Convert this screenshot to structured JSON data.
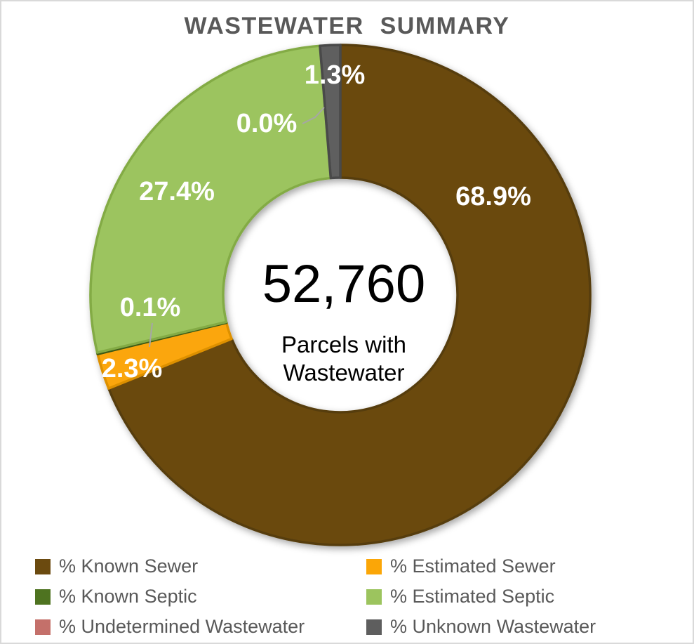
{
  "chart_data": {
    "type": "pie",
    "subtype": "donut",
    "title": "WASTEWATER SUMMARY",
    "start_angle_deg": 0,
    "direction": "clockwise",
    "hole_ratio": 0.47,
    "grid": false,
    "legend_position": "bottom-two-columns",
    "center_text": {
      "value": "52,760",
      "caption_lines": [
        "Parcels with",
        "Wastewater"
      ]
    },
    "series": [
      {
        "key": "known-sewer",
        "name": "% Known Sewer",
        "value": 68.9,
        "label": "68.9%",
        "color": "#6B4A0F",
        "edge": "#563C0B"
      },
      {
        "key": "estimated-sewer",
        "name": "% Estimated Sewer",
        "value": 2.3,
        "label": "2.3%",
        "color": "#FBA607",
        "edge": "#DD9003"
      },
      {
        "key": "known-septic",
        "name": "% Known Septic",
        "value": 0.1,
        "label": "0.1%",
        "color": "#4E7320",
        "edge": "#3C5A17"
      },
      {
        "key": "estimated-septic",
        "name": "% Estimated Septic",
        "value": 27.4,
        "label": "27.4%",
        "color": "#9CC45E",
        "edge": "#83AB45"
      },
      {
        "key": "undetermined-wastewater",
        "name": "% Undetermined Wastewater",
        "value": 0.0,
        "label": "0.0%",
        "color": "#C4706A",
        "edge": "#B25E58"
      },
      {
        "key": "unknown-wastewater",
        "name": "% Unknown Wastewater",
        "value": 1.3,
        "label": "1.3%",
        "color": "#5E5E5E",
        "edge": "#484848"
      }
    ],
    "colors": {
      "title_text": "#595959",
      "legend_text": "#595959",
      "data_label_text": "#ffffff",
      "leader_line": "#a6a6a6",
      "center_text": "#000000",
      "background": "#ffffff",
      "border": "#d9d9d9"
    }
  }
}
